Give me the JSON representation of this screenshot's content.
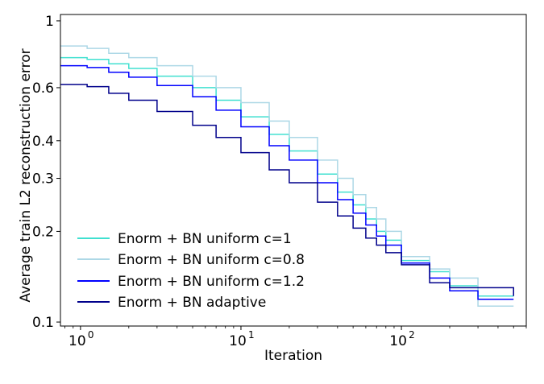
{
  "chart_data": {
    "type": "line",
    "title": "",
    "xlabel": "Iteration",
    "ylabel": "Average train L2 reconstruction error",
    "xscale": "log",
    "yscale": "log",
    "xlim": [
      0.75,
      600
    ],
    "ylim": [
      0.097,
      1.05
    ],
    "x_ticks": [
      {
        "value": 1,
        "base": "10",
        "exp": "0"
      },
      {
        "value": 10,
        "base": "10",
        "exp": "1"
      },
      {
        "value": 100,
        "base": "10",
        "exp": "2"
      }
    ],
    "y_ticks": [
      {
        "value": 1,
        "label": "1"
      },
      {
        "value": 0.6,
        "label": "0.6"
      },
      {
        "value": 0.4,
        "label": "0.4"
      },
      {
        "value": 0.3,
        "label": "0.3"
      },
      {
        "value": 0.2,
        "label": "0.2"
      },
      {
        "value": 0.1,
        "label": "0.1"
      }
    ],
    "grid": false,
    "legend_position": "bottom-left",
    "series": [
      {
        "name": "Enorm + BN uniform c=1",
        "color": "#40e0d0",
        "points": [
          [
            0.75,
            0.755
          ],
          [
            1.0,
            0.755
          ],
          [
            1.1,
            0.745
          ],
          [
            1.5,
            0.72
          ],
          [
            2,
            0.695
          ],
          [
            3,
            0.655
          ],
          [
            5,
            0.6
          ],
          [
            7,
            0.545
          ],
          [
            10,
            0.48
          ],
          [
            15,
            0.42
          ],
          [
            20,
            0.37
          ],
          [
            30,
            0.31
          ],
          [
            40,
            0.27
          ],
          [
            50,
            0.245
          ],
          [
            60,
            0.22
          ],
          [
            70,
            0.2
          ],
          [
            80,
            0.187
          ],
          [
            100,
            0.16
          ],
          [
            150,
            0.147
          ],
          [
            200,
            0.132
          ],
          [
            300,
            0.122
          ],
          [
            500,
            0.122
          ]
        ]
      },
      {
        "name": "Enorm + BN uniform c=0.8",
        "color": "#add8e6",
        "points": [
          [
            0.75,
            0.825
          ],
          [
            1.0,
            0.825
          ],
          [
            1.1,
            0.81
          ],
          [
            1.5,
            0.78
          ],
          [
            2,
            0.755
          ],
          [
            3,
            0.71
          ],
          [
            5,
            0.655
          ],
          [
            7,
            0.6
          ],
          [
            10,
            0.535
          ],
          [
            15,
            0.465
          ],
          [
            20,
            0.41
          ],
          [
            30,
            0.345
          ],
          [
            40,
            0.3
          ],
          [
            50,
            0.265
          ],
          [
            60,
            0.24
          ],
          [
            70,
            0.22
          ],
          [
            80,
            0.2
          ],
          [
            100,
            0.165
          ],
          [
            150,
            0.15
          ],
          [
            200,
            0.14
          ],
          [
            300,
            0.113
          ],
          [
            500,
            0.113
          ]
        ]
      },
      {
        "name": "Enorm + BN uniform c=1.2",
        "color": "#0000ff",
        "points": [
          [
            0.75,
            0.71
          ],
          [
            1.0,
            0.71
          ],
          [
            1.1,
            0.7
          ],
          [
            1.5,
            0.675
          ],
          [
            2,
            0.65
          ],
          [
            3,
            0.61
          ],
          [
            5,
            0.56
          ],
          [
            7,
            0.505
          ],
          [
            10,
            0.445
          ],
          [
            15,
            0.385
          ],
          [
            20,
            0.345
          ],
          [
            30,
            0.29
          ],
          [
            40,
            0.255
          ],
          [
            50,
            0.23
          ],
          [
            60,
            0.21
          ],
          [
            70,
            0.193
          ],
          [
            80,
            0.18
          ],
          [
            100,
            0.157
          ],
          [
            150,
            0.14
          ],
          [
            200,
            0.127
          ],
          [
            300,
            0.119
          ],
          [
            500,
            0.119
          ]
        ]
      },
      {
        "name": "Enorm + BN adaptive",
        "color": "#00008b",
        "points": [
          [
            0.75,
            0.615
          ],
          [
            1.0,
            0.615
          ],
          [
            1.1,
            0.605
          ],
          [
            1.5,
            0.575
          ],
          [
            2,
            0.545
          ],
          [
            3,
            0.5
          ],
          [
            5,
            0.45
          ],
          [
            7,
            0.41
          ],
          [
            10,
            0.365
          ],
          [
            15,
            0.32
          ],
          [
            20,
            0.29
          ],
          [
            30,
            0.25
          ],
          [
            40,
            0.225
          ],
          [
            50,
            0.205
          ],
          [
            60,
            0.19
          ],
          [
            70,
            0.18
          ],
          [
            80,
            0.17
          ],
          [
            100,
            0.155
          ],
          [
            150,
            0.135
          ],
          [
            200,
            0.13
          ],
          [
            300,
            0.13
          ],
          [
            500,
            0.122
          ]
        ]
      }
    ]
  }
}
